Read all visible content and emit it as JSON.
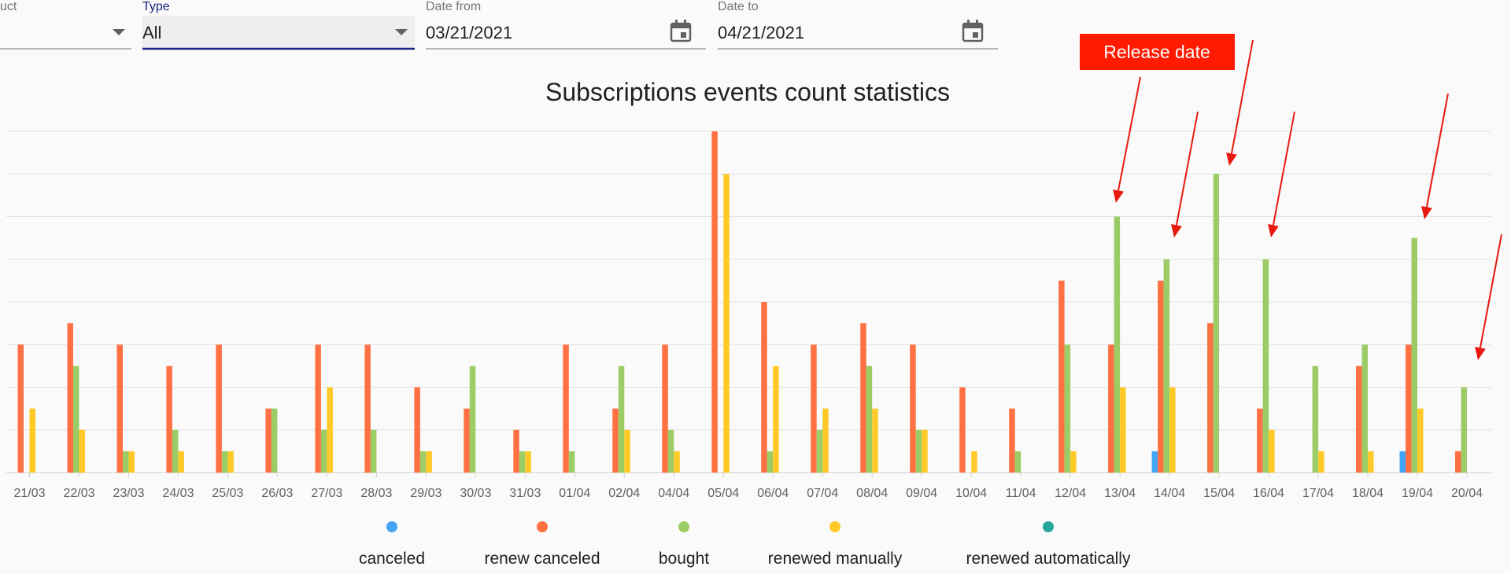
{
  "filters": {
    "product": {
      "label": "uct",
      "value": ""
    },
    "type": {
      "label": "Type",
      "value": "All"
    },
    "date_from": {
      "label": "Date from",
      "value": "03/21/2021"
    },
    "date_to": {
      "label": "Date to",
      "value": "04/21/2021"
    }
  },
  "icons": {
    "dropdown": "chevron-down-icon",
    "calendar": "calendar-icon"
  },
  "annotation": {
    "text": "Release date",
    "box_color": "#ff1a00",
    "arrow_color": "#e8190f"
  },
  "chart_data": {
    "type": "bar",
    "title": "Subscriptions events count statistics",
    "xlabel": "",
    "ylabel": "",
    "ylim": [
      0,
      16
    ],
    "grid": true,
    "legend_position": "bottom",
    "categories": [
      "21/03",
      "22/03",
      "23/03",
      "24/03",
      "25/03",
      "26/03",
      "27/03",
      "28/03",
      "29/03",
      "30/03",
      "31/03",
      "01/04",
      "02/04",
      "04/04",
      "05/04",
      "06/04",
      "07/04",
      "08/04",
      "09/04",
      "10/04",
      "11/04",
      "12/04",
      "13/04",
      "14/04",
      "15/04",
      "16/04",
      "17/04",
      "18/04",
      "19/04",
      "20/04"
    ],
    "series": [
      {
        "name": "canceled",
        "color": "#42a5f5",
        "values": [
          0,
          0,
          0,
          0,
          0,
          0,
          0,
          0,
          0,
          0,
          0,
          0,
          0,
          0,
          0,
          0,
          0,
          0,
          0,
          0,
          0,
          0,
          0,
          1,
          0,
          0,
          0,
          0,
          1,
          0
        ]
      },
      {
        "name": "renew canceled",
        "color": "#ff7043",
        "values": [
          6,
          7,
          6,
          5,
          6,
          3,
          6,
          6,
          4,
          3,
          2,
          6,
          3,
          6,
          16,
          8,
          6,
          7,
          6,
          4,
          3,
          9,
          6,
          9,
          7,
          3,
          0,
          5,
          6,
          1
        ]
      },
      {
        "name": "bought",
        "color": "#9ccc65",
        "values": [
          0,
          5,
          1,
          2,
          1,
          3,
          2,
          2,
          1,
          5,
          1,
          1,
          5,
          2,
          0,
          1,
          2,
          5,
          2,
          0,
          1,
          6,
          12,
          10,
          14,
          10,
          5,
          6,
          11,
          4
        ]
      },
      {
        "name": "renewed manually",
        "color": "#ffca28",
        "values": [
          3,
          2,
          1,
          1,
          1,
          0,
          4,
          0,
          1,
          0,
          1,
          0,
          2,
          1,
          14,
          5,
          3,
          3,
          2,
          1,
          0,
          1,
          4,
          4,
          0,
          2,
          1,
          1,
          3,
          0
        ]
      },
      {
        "name": "renewed automatically",
        "color": "#26a69a",
        "values": [
          0,
          0,
          0,
          0,
          0,
          0,
          0,
          0,
          0,
          0,
          0,
          0,
          0,
          0,
          0,
          0,
          0,
          0,
          0,
          0,
          0,
          0,
          0,
          0,
          0,
          0,
          0,
          0,
          0,
          0
        ]
      }
    ]
  }
}
